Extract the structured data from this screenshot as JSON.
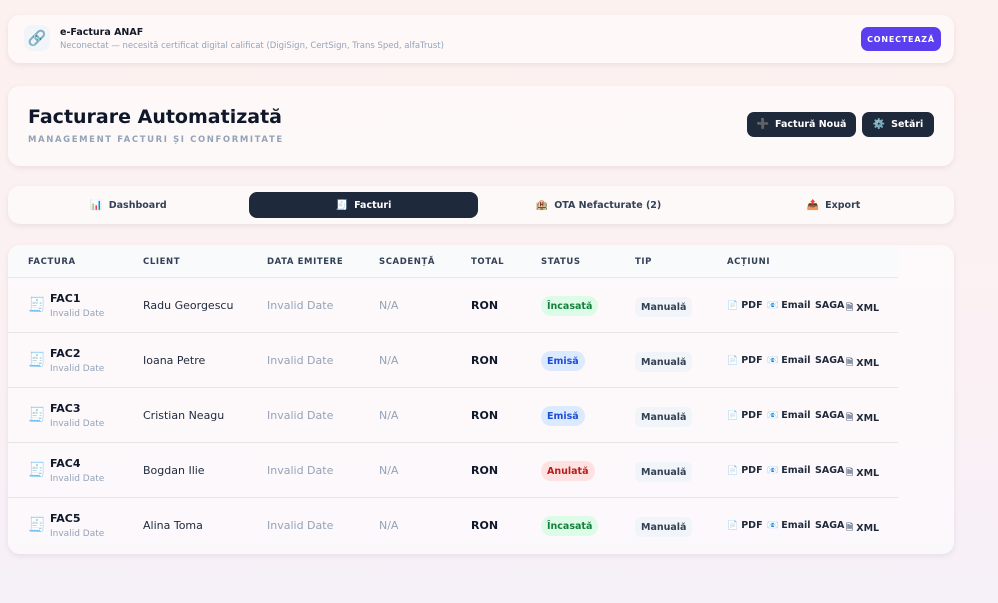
{
  "anaf": {
    "title": "e-Factura ANAF",
    "subtitle": "Neconectat — necesită certificat digital calificat (DigiSign, CertSign, Trans Sped, alfaTrust)",
    "connect_label": "CONECTEAZĂ",
    "icon": "link-icon"
  },
  "header": {
    "title": "Facturare Automatizată",
    "subtitle": "MANAGEMENT FACTURI ȘI CONFORMITATE",
    "new_invoice_label": "Factură Nouă",
    "settings_label": "Setări"
  },
  "tabs": [
    {
      "label": "Dashboard",
      "icon": "chart-icon",
      "active": false
    },
    {
      "label": "Facturi",
      "icon": "receipt-icon",
      "active": true
    },
    {
      "label": "OTA Nefacturate (2)",
      "icon": "hotel-icon",
      "active": false
    },
    {
      "label": "Export",
      "icon": "outbox-icon",
      "active": false
    }
  ],
  "table": {
    "columns": [
      "FACTURA",
      "CLIENT",
      "DATA EMITERE",
      "SCADENȚĂ",
      "TOTAL",
      "STATUS",
      "TIP",
      "ACȚIUNI"
    ],
    "action_labels": {
      "pdf": "PDF",
      "email": "Email",
      "saga": "SAGA",
      "xml": "XML"
    },
    "rows": [
      {
        "number": "FAC1",
        "date": "Invalid Date",
        "client": "Radu Georgescu",
        "issue_date": "Invalid Date",
        "due": "N/A",
        "total": "RON",
        "status": "Încasată",
        "status_color": "#15803d",
        "type": "Manuală"
      },
      {
        "number": "FAC2",
        "date": "Invalid Date",
        "client": "Ioana Petre",
        "issue_date": "Invalid Date",
        "due": "N/A",
        "total": "RON",
        "status": "Emisă",
        "status_color": "#1d4ed8",
        "type": "Manuală"
      },
      {
        "number": "FAC3",
        "date": "Invalid Date",
        "client": "Cristian Neagu",
        "issue_date": "Invalid Date",
        "due": "N/A",
        "total": "RON",
        "status": "Emisă",
        "status_color": "#1d4ed8",
        "type": "Manuală"
      },
      {
        "number": "FAC4",
        "date": "Invalid Date",
        "client": "Bogdan Ilie",
        "issue_date": "Invalid Date",
        "due": "N/A",
        "total": "RON",
        "status": "Anulată",
        "status_color": "#b91c1c",
        "type": "Manuală"
      },
      {
        "number": "FAC5",
        "date": "Invalid Date",
        "client": "Alina Toma",
        "issue_date": "Invalid Date",
        "due": "N/A",
        "total": "RON",
        "status": "Încasată",
        "status_color": "#15803d",
        "type": "Manuală"
      }
    ]
  },
  "colors": {
    "accent": "#5b3ef0",
    "dark": "#1e293b"
  }
}
